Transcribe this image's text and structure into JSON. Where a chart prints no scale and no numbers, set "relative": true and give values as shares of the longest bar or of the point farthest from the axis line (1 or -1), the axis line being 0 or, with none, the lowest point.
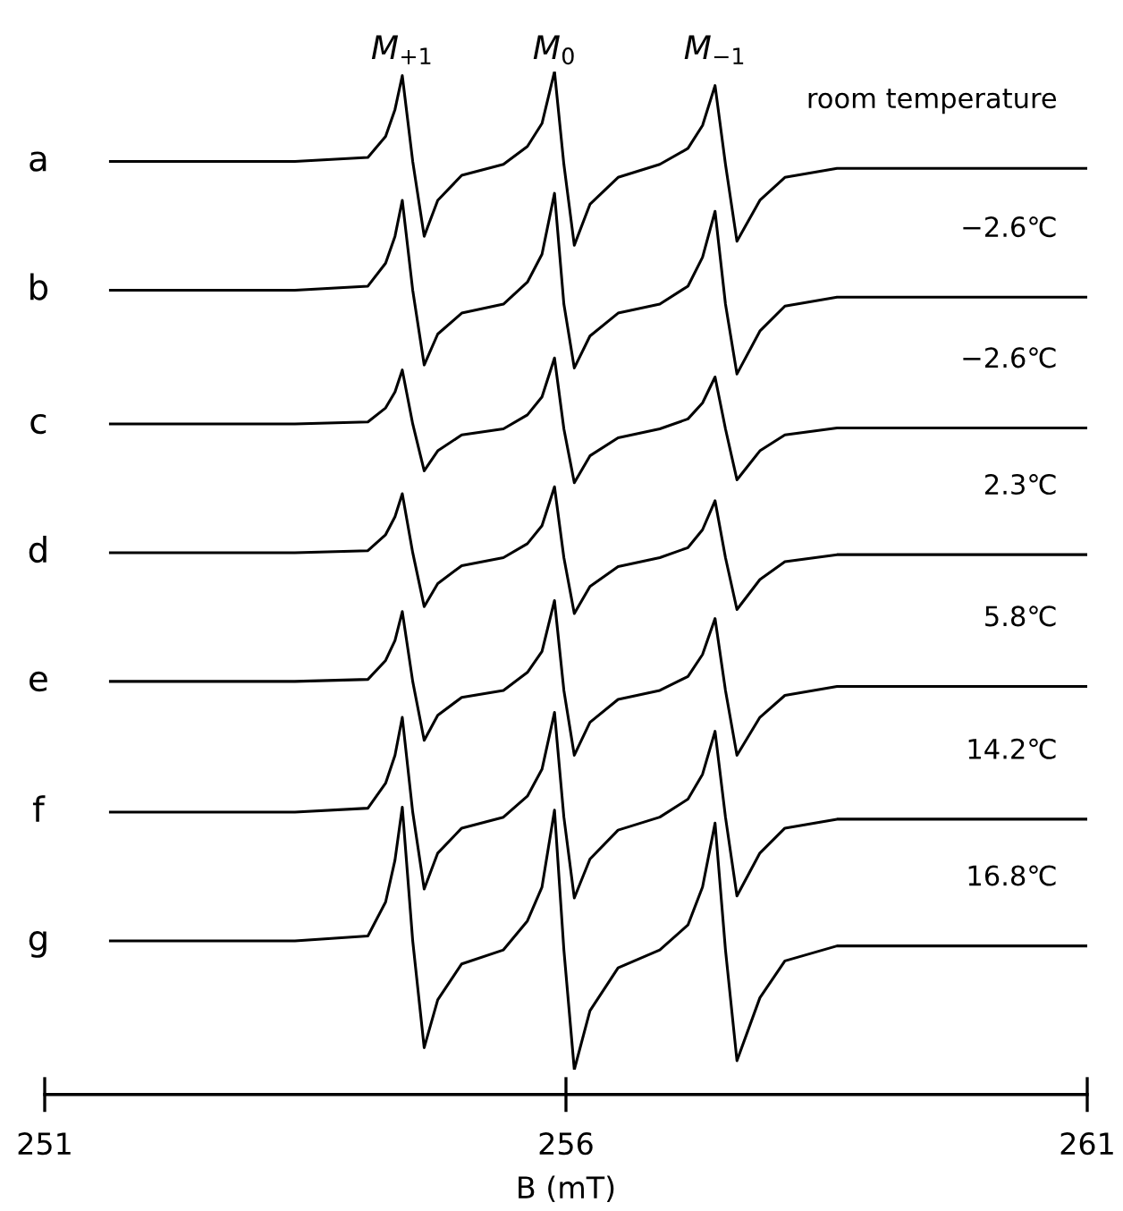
{
  "chart_data": {
    "type": "line",
    "relative": true,
    "xlabel": "B (mT)",
    "x": [
      251.63,
      252.5,
      253.4,
      254.1,
      254.27,
      254.36,
      254.43,
      254.53,
      254.64,
      254.77,
      255.0,
      255.4,
      255.63,
      255.77,
      255.89,
      255.98,
      256.08,
      256.23,
      256.5,
      256.9,
      257.17,
      257.31,
      257.43,
      257.53,
      257.64,
      257.86,
      258.1,
      258.6,
      259.8,
      261.0
    ],
    "xlim": [
      251,
      261
    ],
    "xticks": [
      251,
      256,
      261
    ],
    "grid": false,
    "legend": false,
    "tick_labels": "x",
    "series": [
      {
        "name": "a",
        "color": "#000000",
        "values": [
          0.91,
          0.91,
          0.91,
          0.914,
          0.935,
          0.962,
          0.996,
          0.91,
          0.835,
          0.871,
          0.896,
          0.907,
          0.925,
          0.948,
          1.0,
          0.907,
          0.826,
          0.867,
          0.894,
          0.907,
          0.923,
          0.946,
          0.986,
          0.907,
          0.83,
          0.871,
          0.894,
          0.903,
          0.903,
          0.903
        ]
      },
      {
        "name": "b",
        "color": "#000000",
        "values": [
          0.781,
          0.781,
          0.781,
          0.785,
          0.808,
          0.835,
          0.871,
          0.781,
          0.706,
          0.737,
          0.758,
          0.767,
          0.789,
          0.817,
          0.878,
          0.767,
          0.703,
          0.735,
          0.758,
          0.767,
          0.785,
          0.814,
          0.86,
          0.767,
          0.697,
          0.74,
          0.765,
          0.774,
          0.774,
          0.774
        ]
      },
      {
        "name": "c",
        "color": "#000000",
        "values": [
          0.647,
          0.647,
          0.647,
          0.649,
          0.663,
          0.679,
          0.701,
          0.647,
          0.6,
          0.62,
          0.636,
          0.642,
          0.656,
          0.674,
          0.713,
          0.642,
          0.588,
          0.615,
          0.633,
          0.642,
          0.652,
          0.668,
          0.694,
          0.642,
          0.591,
          0.62,
          0.636,
          0.643,
          0.643,
          0.643
        ]
      },
      {
        "name": "d",
        "color": "#000000",
        "values": [
          0.518,
          0.518,
          0.518,
          0.52,
          0.536,
          0.554,
          0.577,
          0.518,
          0.464,
          0.487,
          0.505,
          0.513,
          0.527,
          0.545,
          0.584,
          0.513,
          0.457,
          0.484,
          0.504,
          0.513,
          0.523,
          0.541,
          0.57,
          0.513,
          0.461,
          0.491,
          0.509,
          0.516,
          0.516,
          0.516
        ]
      },
      {
        "name": "e",
        "color": "#000000",
        "values": [
          0.389,
          0.389,
          0.389,
          0.391,
          0.41,
          0.43,
          0.459,
          0.389,
          0.33,
          0.355,
          0.373,
          0.38,
          0.398,
          0.419,
          0.47,
          0.38,
          0.315,
          0.348,
          0.371,
          0.38,
          0.394,
          0.416,
          0.452,
          0.38,
          0.315,
          0.353,
          0.375,
          0.384,
          0.384,
          0.384
        ]
      },
      {
        "name": "f",
        "color": "#000000",
        "values": [
          0.258,
          0.258,
          0.258,
          0.262,
          0.287,
          0.315,
          0.353,
          0.258,
          0.181,
          0.217,
          0.242,
          0.253,
          0.274,
          0.301,
          0.358,
          0.253,
          0.172,
          0.211,
          0.24,
          0.253,
          0.271,
          0.296,
          0.339,
          0.253,
          0.174,
          0.217,
          0.242,
          0.251,
          0.251,
          0.251
        ]
      },
      {
        "name": "g",
        "color": "#000000",
        "values": [
          0.129,
          0.129,
          0.129,
          0.134,
          0.168,
          0.21,
          0.263,
          0.129,
          0.022,
          0.07,
          0.106,
          0.12,
          0.149,
          0.183,
          0.26,
          0.12,
          0,
          0.059,
          0.102,
          0.12,
          0.145,
          0.183,
          0.247,
          0.12,
          0.009,
          0.072,
          0.109,
          0.124,
          0.124,
          0.124
        ]
      }
    ],
    "annotations": [
      "M$_{+1}$",
      "M$_{0}$",
      "M$_{−1}$",
      "room temperature",
      "−2.6℃",
      "−2.6℃",
      "2.3℃",
      "5.8℃",
      "14.2℃",
      "16.8℃"
    ]
  }
}
